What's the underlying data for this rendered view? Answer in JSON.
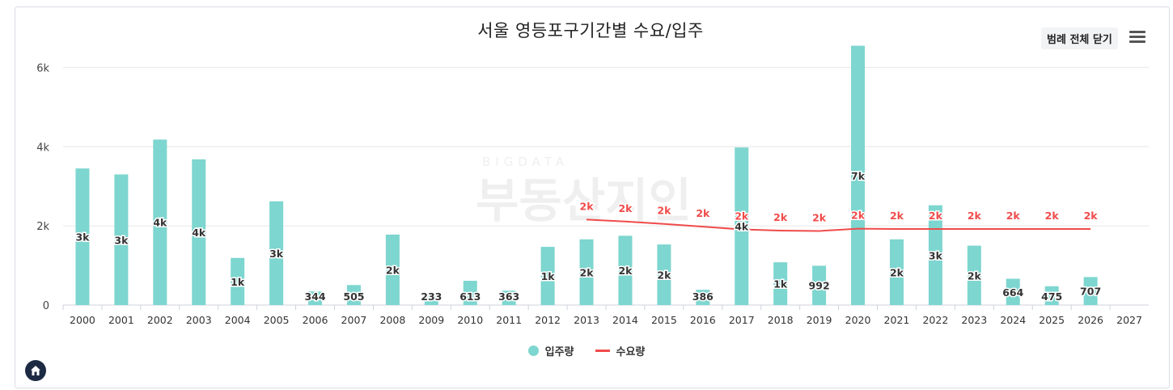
{
  "title": "서울 영등포구기간별 수요/입주",
  "legend_toggle_label": "범례 전체 닫기",
  "menu_icon": "hamburger-icon",
  "home_icon": "home-icon",
  "watermark": {
    "small": "BIGDATA",
    "large": "부동산지인"
  },
  "legend": [
    {
      "name": "입주량",
      "symbol": "circle",
      "color": "#7dd6cf"
    },
    {
      "name": "수요량",
      "symbol": "line",
      "color": "#f04b4b"
    }
  ],
  "chart_data": {
    "type": "bar",
    "title": "서울 영등포구기간별 수요/입주",
    "categories": [
      "2000",
      "2001",
      "2002",
      "2003",
      "2004",
      "2005",
      "2006",
      "2007",
      "2008",
      "2009",
      "2010",
      "2011",
      "2012",
      "2013",
      "2014",
      "2015",
      "2016",
      "2017",
      "2018",
      "2019",
      "2020",
      "2021",
      "2022",
      "2023",
      "2024",
      "2025",
      "2026",
      "2027"
    ],
    "ylim": [
      0,
      7000
    ],
    "yticks": [
      0,
      2000,
      4000,
      6000
    ],
    "ytick_labels": [
      "0",
      "2k",
      "4k",
      "6k"
    ],
    "grid": true,
    "legend_position": "bottom",
    "series": [
      {
        "name": "입주량",
        "type": "bar",
        "color": "#7dd6cf",
        "values": [
          3450,
          3300,
          4180,
          3680,
          1190,
          2620,
          344,
          505,
          1780,
          233,
          613,
          363,
          1470,
          1660,
          1750,
          1530,
          386,
          3980,
          1080,
          992,
          6550,
          1660,
          2520,
          1500,
          664,
          475,
          707,
          null
        ],
        "labels": [
          "3k",
          "3k",
          "4k",
          "4k",
          "1k",
          "3k",
          "344",
          "505",
          "2k",
          "233",
          "613",
          "363",
          "1k",
          "2k",
          "2k",
          "2k",
          "386",
          "4k",
          "1k",
          "992",
          "7k",
          "2k",
          "3k",
          "2k",
          "664",
          "475",
          "707",
          ""
        ]
      },
      {
        "name": "수요량",
        "type": "line",
        "color": "#f04b4b",
        "values": [
          null,
          null,
          null,
          null,
          null,
          null,
          null,
          null,
          null,
          null,
          null,
          null,
          null,
          2160,
          2110,
          2050,
          1980,
          1910,
          1880,
          1870,
          1930,
          1920,
          1920,
          1920,
          1920,
          1920,
          1920,
          null
        ],
        "labels": [
          "",
          "",
          "",
          "",
          "",
          "",
          "",
          "",
          "",
          "",
          "",
          "",
          "",
          "2k",
          "2k",
          "2k",
          "2k",
          "2k",
          "2k",
          "2k",
          "2k",
          "2k",
          "2k",
          "2k",
          "2k",
          "2k",
          "2k",
          ""
        ]
      }
    ]
  }
}
